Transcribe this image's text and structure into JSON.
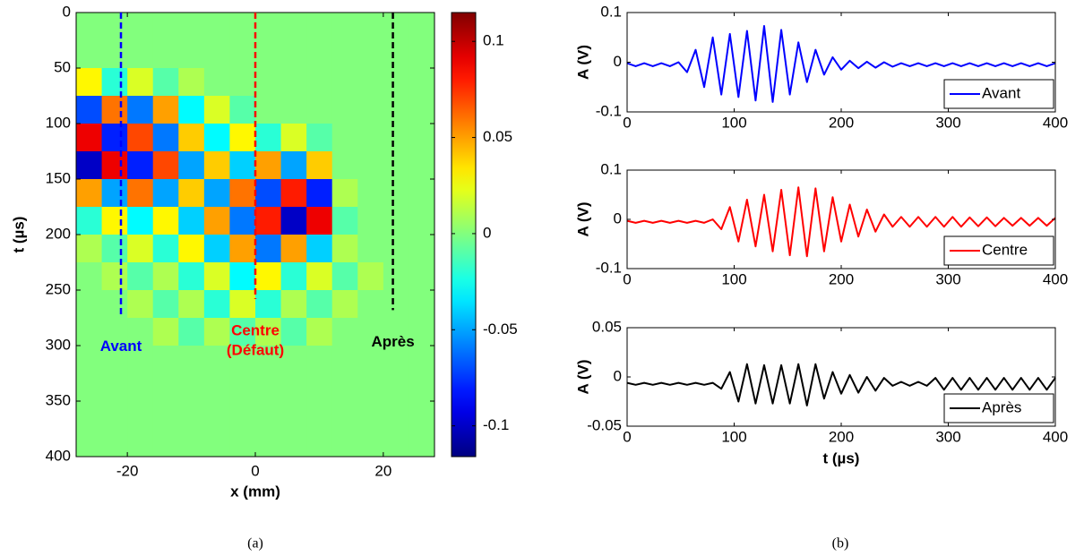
{
  "captions": [
    "(a)",
    "(b)"
  ],
  "chart_data": [
    {
      "type": "heatmap",
      "xlabel": "x (mm)",
      "ylabel": "t (µs)",
      "xlim": [
        -28,
        28
      ],
      "ylim": [
        0,
        400
      ],
      "y_reversed": true,
      "xticks": [
        -20,
        0,
        20
      ],
      "yticks": [
        0,
        50,
        100,
        150,
        200,
        250,
        300,
        350,
        400
      ],
      "colormap": "jet",
      "clim": [
        -0.116,
        0.115
      ],
      "cticks": [
        -0.1,
        -0.05,
        0,
        0.05,
        0.1
      ],
      "xbins": [
        -28,
        -24,
        -20,
        -16,
        -12,
        -8,
        -4,
        0,
        4,
        8,
        12,
        16,
        20,
        24,
        28
      ],
      "ybins": [
        0,
        25,
        50,
        75,
        100,
        125,
        150,
        175,
        200,
        225,
        250,
        275,
        300,
        325,
        350,
        375,
        400
      ],
      "z": [
        [
          0,
          0,
          0,
          0,
          0,
          0,
          0,
          0,
          0,
          0,
          0,
          0,
          0,
          0
        ],
        [
          0,
          0,
          0,
          0,
          0,
          0,
          0,
          0,
          0,
          0,
          0,
          0,
          0,
          0
        ],
        [
          0.03,
          -0.02,
          0.02,
          -0.01,
          0.01,
          0,
          0,
          0,
          0,
          0,
          0,
          0,
          0,
          0
        ],
        [
          -0.07,
          0.06,
          -0.06,
          0.05,
          -0.03,
          0.02,
          -0.01,
          0,
          0,
          0,
          0,
          0,
          0,
          0
        ],
        [
          0.09,
          -0.08,
          0.07,
          -0.06,
          0.04,
          -0.03,
          0.03,
          -0.02,
          0.02,
          -0.01,
          0,
          0,
          0,
          0
        ],
        [
          -0.1,
          0.09,
          -0.08,
          0.07,
          -0.05,
          0.04,
          -0.04,
          0.05,
          -0.05,
          0.04,
          0,
          0,
          0,
          0
        ],
        [
          0.05,
          -0.05,
          0.06,
          -0.05,
          0.04,
          -0.05,
          0.06,
          -0.07,
          0.08,
          -0.08,
          0.01,
          0,
          0,
          0
        ],
        [
          -0.02,
          0.03,
          -0.03,
          0.03,
          -0.04,
          0.05,
          -0.06,
          0.08,
          -0.1,
          0.09,
          -0.01,
          0,
          0,
          0
        ],
        [
          0.01,
          -0.01,
          0.02,
          -0.02,
          0.03,
          -0.04,
          0.05,
          -0.06,
          0.05,
          -0.04,
          0.01,
          0,
          0,
          0
        ],
        [
          0,
          0.01,
          -0.01,
          0.01,
          -0.02,
          0.02,
          -0.03,
          0.03,
          -0.02,
          0.02,
          -0.01,
          0.01,
          0,
          0
        ],
        [
          0,
          0,
          0.01,
          -0.01,
          0.01,
          -0.02,
          0.02,
          -0.02,
          0.01,
          -0.01,
          0.01,
          0,
          0,
          0
        ],
        [
          0,
          0,
          0,
          0.01,
          -0.01,
          0.01,
          -0.01,
          0.01,
          -0.01,
          0.01,
          0,
          0,
          0,
          0
        ],
        [
          0,
          0,
          0,
          0,
          0,
          0,
          0,
          0,
          0,
          0,
          0,
          0,
          0,
          0
        ],
        [
          0,
          0,
          0,
          0,
          0,
          0,
          0,
          0,
          0,
          0,
          0,
          0,
          0,
          0
        ],
        [
          0,
          0,
          0,
          0,
          0,
          0,
          0,
          0,
          0,
          0,
          0,
          0,
          0,
          0
        ],
        [
          0,
          0,
          0,
          0,
          0,
          0,
          0,
          0,
          0,
          0,
          0,
          0,
          0,
          0
        ]
      ],
      "markers": [
        {
          "x": -21,
          "t": [
            0,
            272
          ],
          "color": "#0000ff",
          "label": [
            "Avant"
          ]
        },
        {
          "x": 0,
          "t": [
            0,
            258
          ],
          "color": "#ff0000",
          "label": [
            "Centre",
            "(Défaut)"
          ]
        },
        {
          "x": 21.5,
          "t": [
            0,
            268
          ],
          "color": "#000000",
          "label": [
            "Après"
          ]
        }
      ]
    },
    {
      "type": "line",
      "ylabel": "A (V)",
      "xlim": [
        0,
        400
      ],
      "ylim": [
        -0.1,
        0.1
      ],
      "xticks": [
        0,
        100,
        200,
        300,
        400
      ],
      "yticks": [
        -0.1,
        0,
        0.1
      ],
      "legend": "lower right",
      "x": [
        0,
        8,
        16,
        24,
        32,
        40,
        48,
        56,
        64,
        72,
        80,
        88,
        96,
        104,
        112,
        120,
        128,
        136,
        144,
        152,
        160,
        168,
        176,
        184,
        192,
        200,
        208,
        216,
        224,
        232,
        240,
        248,
        256,
        264,
        272,
        280,
        288,
        296,
        304,
        312,
        320,
        328,
        336,
        344,
        352,
        360,
        368,
        376,
        384,
        392,
        400
      ],
      "series": [
        {
          "name": "Avant",
          "color": "#0000ff",
          "values": [
            -0.002,
            -0.008,
            -0.002,
            -0.008,
            -0.002,
            -0.008,
            0,
            -0.02,
            0.025,
            -0.05,
            0.05,
            -0.065,
            0.057,
            -0.07,
            0.063,
            -0.077,
            0.073,
            -0.08,
            0.065,
            -0.065,
            0.04,
            -0.04,
            0.025,
            -0.025,
            0.01,
            -0.015,
            0.003,
            -0.012,
            0.001,
            -0.011,
            0,
            -0.009,
            -0.002,
            -0.008,
            -0.002,
            -0.008,
            -0.002,
            -0.008,
            -0.002,
            -0.008,
            -0.002,
            -0.008,
            -0.002,
            -0.008,
            -0.002,
            -0.008,
            -0.002,
            -0.008,
            -0.002,
            -0.008,
            -0.002
          ]
        }
      ]
    },
    {
      "type": "line",
      "ylabel": "A (V)",
      "xlim": [
        0,
        400
      ],
      "ylim": [
        -0.1,
        0.1
      ],
      "xticks": [
        0,
        100,
        200,
        300,
        400
      ],
      "yticks": [
        -0.1,
        0,
        0.1
      ],
      "legend": "lower right",
      "x": [
        0,
        8,
        16,
        24,
        32,
        40,
        48,
        56,
        64,
        72,
        80,
        88,
        96,
        104,
        112,
        120,
        128,
        136,
        144,
        152,
        160,
        168,
        176,
        184,
        192,
        200,
        208,
        216,
        224,
        232,
        240,
        248,
        256,
        264,
        272,
        280,
        288,
        296,
        304,
        312,
        320,
        328,
        336,
        344,
        352,
        360,
        368,
        376,
        384,
        392,
        400
      ],
      "series": [
        {
          "name": "Centre",
          "color": "#ff0000",
          "values": [
            -0.003,
            -0.007,
            -0.003,
            -0.007,
            -0.003,
            -0.007,
            -0.003,
            -0.007,
            -0.003,
            -0.007,
            0,
            -0.02,
            0.025,
            -0.045,
            0.04,
            -0.055,
            0.05,
            -0.065,
            0.06,
            -0.073,
            0.065,
            -0.075,
            0.063,
            -0.065,
            0.045,
            -0.045,
            0.03,
            -0.035,
            0.02,
            -0.025,
            0.01,
            -0.015,
            0.005,
            -0.015,
            0.005,
            -0.015,
            0.005,
            -0.015,
            0.005,
            -0.015,
            0.004,
            -0.014,
            0.004,
            -0.014,
            0.003,
            -0.013,
            0.003,
            -0.013,
            0.003,
            -0.013,
            0.003
          ]
        }
      ]
    },
    {
      "type": "line",
      "ylabel": "A (V)",
      "xlabel": "t (µs)",
      "xlim": [
        0,
        400
      ],
      "ylim": [
        -0.05,
        0.05
      ],
      "xticks": [
        0,
        100,
        200,
        300,
        400
      ],
      "yticks": [
        -0.05,
        0,
        0.05
      ],
      "legend": "lower right",
      "x": [
        0,
        8,
        16,
        24,
        32,
        40,
        48,
        56,
        64,
        72,
        80,
        88,
        96,
        104,
        112,
        120,
        128,
        136,
        144,
        152,
        160,
        168,
        176,
        184,
        192,
        200,
        208,
        216,
        224,
        232,
        240,
        248,
        256,
        264,
        272,
        280,
        288,
        296,
        304,
        312,
        320,
        328,
        336,
        344,
        352,
        360,
        368,
        376,
        384,
        392,
        400
      ],
      "series": [
        {
          "name": "Après",
          "color": "#000000",
          "values": [
            -0.006,
            -0.008,
            -0.006,
            -0.008,
            -0.006,
            -0.008,
            -0.006,
            -0.008,
            -0.006,
            -0.008,
            -0.006,
            -0.012,
            0.005,
            -0.025,
            0.013,
            -0.027,
            0.012,
            -0.027,
            0.012,
            -0.027,
            0.013,
            -0.029,
            0.013,
            -0.022,
            0.005,
            -0.017,
            0.002,
            -0.016,
            0,
            -0.014,
            -0.001,
            -0.009,
            -0.005,
            -0.009,
            -0.005,
            -0.009,
            -0.001,
            -0.013,
            -0.001,
            -0.013,
            -0.001,
            -0.013,
            -0.001,
            -0.013,
            -0.001,
            -0.013,
            -0.001,
            -0.013,
            -0.001,
            -0.013,
            -0.001
          ]
        }
      ]
    }
  ]
}
